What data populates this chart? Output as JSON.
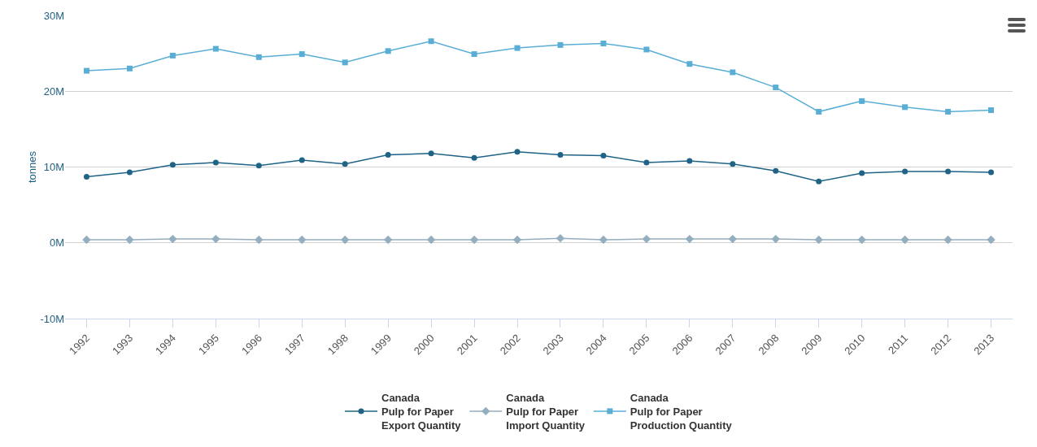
{
  "chart_data": {
    "type": "line",
    "ylabel": "tonnes",
    "categories": [
      "1992",
      "1993",
      "1994",
      "1995",
      "1996",
      "1997",
      "1998",
      "1999",
      "2000",
      "2001",
      "2002",
      "2003",
      "2004",
      "2005",
      "2006",
      "2007",
      "2008",
      "2009",
      "2010",
      "2011",
      "2012",
      "2013"
    ],
    "series": [
      {
        "name": "Canada\nPulp for Paper\nExport Quantity",
        "color": "#1f6387",
        "marker": "circle",
        "values": [
          8700000.0,
          9300000.0,
          10300000.0,
          10600000.0,
          10200000.0,
          10900000.0,
          10400000.0,
          11600000.0,
          11800000.0,
          11200000.0,
          12000000.0,
          11600000.0,
          11500000.0,
          10600000.0,
          10800000.0,
          10400000.0,
          9500000.0,
          8100000.0,
          9200000.0,
          9400000.0,
          9400000.0,
          9300000.0
        ]
      },
      {
        "name": "Canada\nPulp for Paper\nImport Quantity",
        "color": "#95aebf",
        "marker": "diamond",
        "values": [
          400000.0,
          400000.0,
          500000.0,
          500000.0,
          400000.0,
          400000.0,
          400000.0,
          400000.0,
          400000.0,
          400000.0,
          400000.0,
          600000.0,
          400000.0,
          500000.0,
          500000.0,
          500000.0,
          500000.0,
          400000.0,
          400000.0,
          400000.0,
          400000.0,
          400000.0
        ]
      },
      {
        "name": "Canada\nPulp for Paper\nProduction Quantity",
        "color": "#5aaed6",
        "marker": "square",
        "values": [
          22700000.0,
          23000000.0,
          24700000.0,
          25600000.0,
          24500000.0,
          24900000.0,
          23800000.0,
          25300000.0,
          26600000.0,
          24900000.0,
          25700000.0,
          26100000.0,
          26300000.0,
          25500000.0,
          23600000.0,
          22500000.0,
          20500000.0,
          17300000.0,
          18700000.0,
          17900000.0,
          17300000.0,
          17500000.0
        ]
      }
    ],
    "ylim": [
      -10000000,
      30000000
    ],
    "yticks": [
      {
        "value": -10000000,
        "label": "-10M"
      },
      {
        "value": 0,
        "label": "0M"
      },
      {
        "value": 10000000,
        "label": "10M"
      },
      {
        "value": 20000000,
        "label": "20M"
      },
      {
        "value": 30000000,
        "label": "30M"
      }
    ],
    "grid": "y",
    "legend": "bottom",
    "line_style": "solid"
  }
}
